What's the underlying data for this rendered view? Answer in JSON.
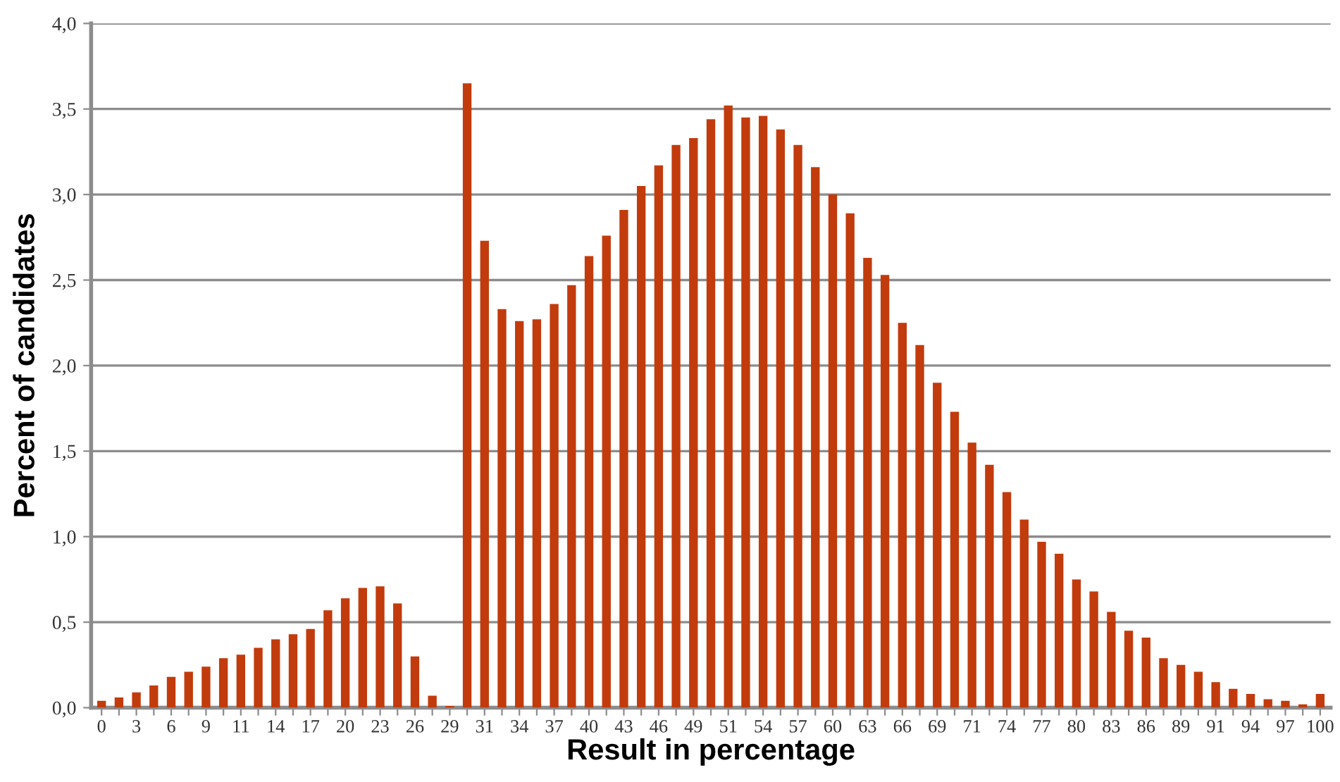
{
  "chart_data": {
    "type": "bar",
    "xlabel": "Result in percentage",
    "ylabel": "Percent of candidates",
    "categories": [
      "0",
      null,
      "3",
      null,
      "6",
      null,
      "9",
      null,
      "11",
      null,
      "14",
      null,
      "17",
      null,
      "20",
      null,
      "23",
      null,
      "26",
      null,
      "29",
      null,
      "31",
      null,
      "34",
      null,
      "37",
      null,
      "40",
      null,
      "43",
      null,
      "46",
      null,
      "49",
      null,
      "51",
      null,
      "54",
      null,
      "57",
      null,
      "60",
      null,
      "63",
      null,
      "66",
      null,
      "69",
      null,
      "71",
      null,
      "74",
      null,
      "77",
      null,
      "80",
      null,
      "83",
      null,
      "86",
      null,
      "89",
      null,
      "91",
      null,
      "94",
      null,
      "97",
      null,
      "100"
    ],
    "values": [
      0.04,
      0.06,
      0.09,
      0.13,
      0.18,
      0.21,
      0.24,
      0.29,
      0.31,
      0.35,
      0.4,
      0.43,
      0.46,
      0.57,
      0.64,
      0.7,
      0.71,
      0.61,
      0.3,
      0.07,
      0.01,
      3.65,
      2.73,
      2.33,
      2.26,
      2.27,
      2.36,
      2.47,
      2.64,
      2.76,
      2.91,
      3.05,
      3.17,
      3.29,
      3.33,
      3.44,
      3.52,
      3.45,
      3.46,
      3.38,
      3.29,
      3.16,
      3.0,
      2.89,
      2.63,
      2.53,
      2.25,
      2.12,
      1.9,
      1.73,
      1.55,
      1.42,
      1.26,
      1.1,
      0.97,
      0.9,
      0.75,
      0.68,
      0.56,
      0.45,
      0.41,
      0.29,
      0.25,
      0.21,
      0.15,
      0.11,
      0.08,
      0.05,
      0.04,
      0.02,
      0.08
    ],
    "color": "#c23b0c",
    "ylim": [
      0,
      4
    ],
    "yticks": [
      {
        "value": 0,
        "label": "0,0"
      },
      {
        "value": 0.5,
        "label": "0,5"
      },
      {
        "value": 1,
        "label": "1,0"
      },
      {
        "value": 1.5,
        "label": "1,5"
      },
      {
        "value": 2,
        "label": "2,0"
      },
      {
        "value": 2.5,
        "label": "2,5"
      },
      {
        "value": 3,
        "label": "3,0"
      },
      {
        "value": 3.5,
        "label": "3,5"
      },
      {
        "value": 4,
        "label": "4,0"
      }
    ],
    "grid": "y"
  }
}
